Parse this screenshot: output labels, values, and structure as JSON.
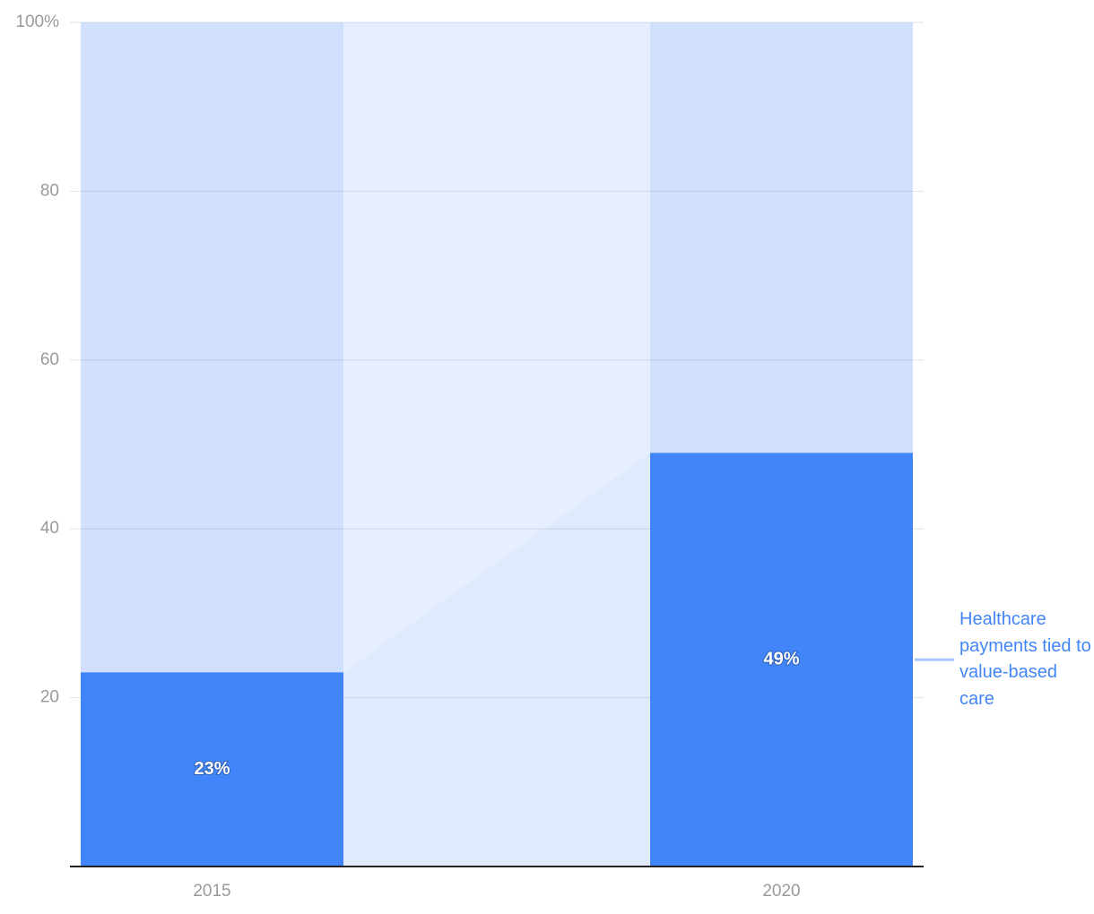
{
  "chart_data": {
    "type": "bar",
    "stacked_to": 100,
    "categories": [
      "2015",
      "2020"
    ],
    "series": [
      {
        "name": "Healthcare payments tied to value-based care",
        "color": "#4285f8",
        "values": [
          23,
          49
        ],
        "value_labels": [
          "23%",
          "49%"
        ]
      }
    ],
    "ylim": [
      0,
      100
    ],
    "yticks": [
      20,
      40,
      60,
      80,
      {
        "value": 100,
        "label": "100%"
      }
    ],
    "grid": true
  }
}
